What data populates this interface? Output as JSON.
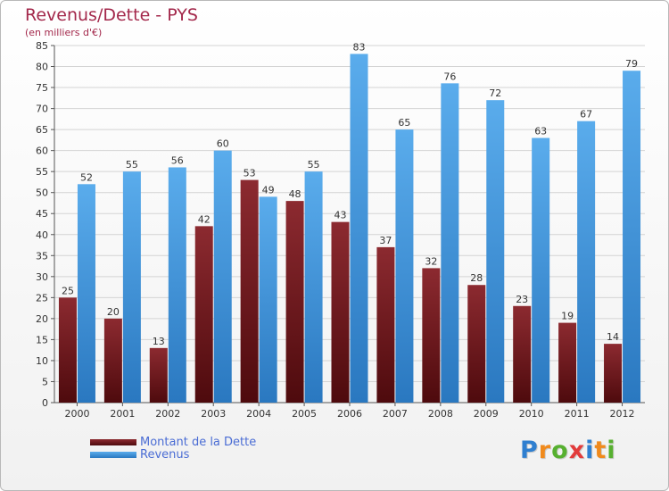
{
  "header": {
    "title": "Revenus/Dette - PYS",
    "subtitle": "(en milliers d'€)"
  },
  "colors": {
    "title": "#a3284b",
    "dette": "#7a1a1f",
    "revenus": "#4ea0e2",
    "legend_text": "#4a6cd4"
  },
  "chart_data": {
    "type": "bar",
    "title": "Revenus/Dette - PYS",
    "subtitle": "(en milliers d'€)",
    "categories": [
      "2000",
      "2001",
      "2002",
      "2003",
      "2004",
      "2005",
      "2006",
      "2007",
      "2008",
      "2009",
      "2010",
      "2011",
      "2012"
    ],
    "series": [
      {
        "name": "Montant de la Dette",
        "color": "#7a1a1f",
        "values": [
          25,
          20,
          13,
          42,
          53,
          48,
          43,
          37,
          32,
          28,
          23,
          19,
          14
        ]
      },
      {
        "name": "Revenus",
        "color": "#4ea0e2",
        "values": [
          52,
          55,
          56,
          60,
          49,
          55,
          83,
          65,
          76,
          72,
          63,
          67,
          79
        ]
      }
    ],
    "ylim": [
      0,
      85
    ],
    "ytick_step": 5,
    "grid": "horizontal",
    "legend": "bottom-left"
  },
  "logo": {
    "letters": [
      "P",
      "r",
      "o",
      "x",
      "i",
      "t",
      "i"
    ],
    "colors": [
      "#2f7fd0",
      "#f08a1c",
      "#57b030",
      "#e23b3b",
      "#2f7fd0",
      "#f08a1c",
      "#57b030"
    ]
  }
}
